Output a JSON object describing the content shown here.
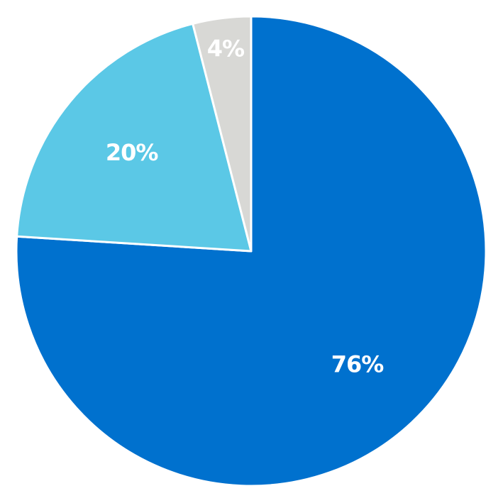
{
  "chart_data": {
    "type": "pie",
    "slices": [
      {
        "value": 76,
        "label": "76%",
        "color": "#0071ce"
      },
      {
        "value": 20,
        "label": "20%",
        "color": "#5bc8e6"
      },
      {
        "value": 4,
        "label": "4%",
        "color": "#d8d8d5"
      }
    ],
    "start": "top",
    "direction": "clockwise",
    "legend": "none"
  }
}
